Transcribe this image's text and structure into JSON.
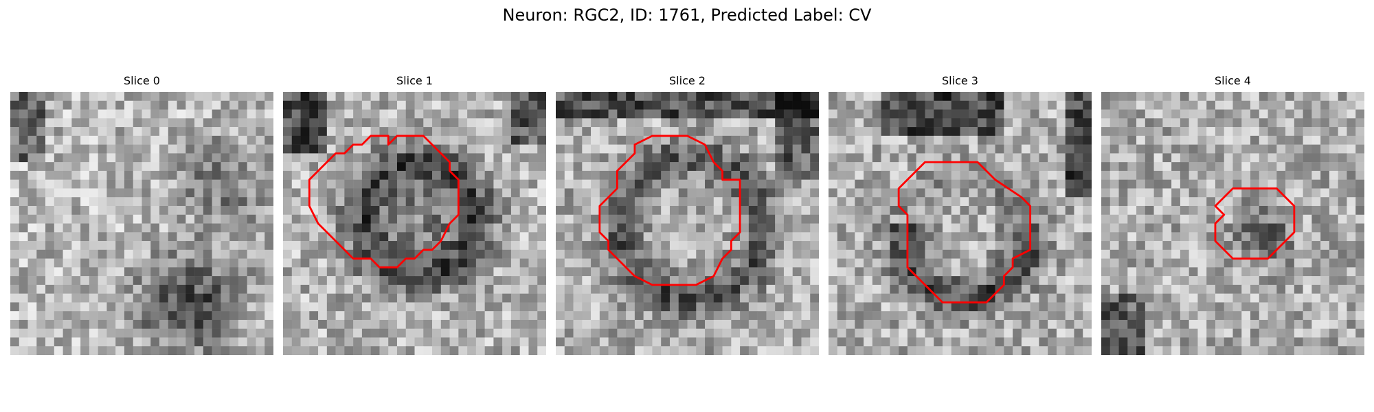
{
  "figure": {
    "title": "Neuron: RGC2, ID: 1761, Predicted Label: CV"
  },
  "colors": {
    "background": "#ffffff",
    "contour": "#ff0000",
    "grayscale_dark": "#111111",
    "grayscale_light": "#eeeeee"
  },
  "slices": [
    {
      "title": "Slice 0",
      "has_contour": false
    },
    {
      "title": "Slice 1",
      "has_contour": true
    },
    {
      "title": "Slice 2",
      "has_contour": true
    },
    {
      "title": "Slice 3",
      "has_contour": true
    },
    {
      "title": "Slice 4",
      "has_contour": true
    }
  ]
}
